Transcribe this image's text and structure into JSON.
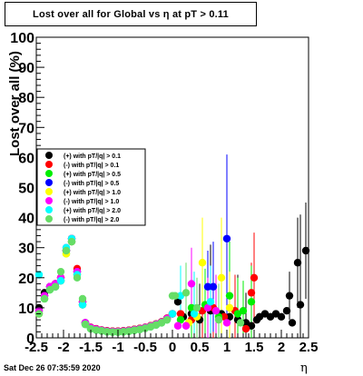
{
  "title": "Lost over all for Global vs   η at pT > 0.11",
  "timestamp": "Sat Dec 26 07:35:59 2020",
  "chart_data": {
    "type": "scatter",
    "title": "Lost over all for Global vs   η at pT > 0.11",
    "xlabel": "η",
    "ylabel": "Lost over all (%)",
    "xlim": [
      -2.5,
      2.5
    ],
    "ylim": [
      0,
      100
    ],
    "xticks": [
      "-2.5",
      "-2",
      "-1.5",
      "-1",
      "-0.5",
      "0",
      "0.5",
      "1",
      "1.5",
      "2",
      "2.5"
    ],
    "yticks": [
      "0",
      "10",
      "20",
      "30",
      "40",
      "50",
      "60",
      "70",
      "80",
      "90",
      "100"
    ],
    "legend_position": "left-middle",
    "series": [
      {
        "name": "(+) with pT/|q| > 0.1",
        "color": "#000000",
        "points": [
          [
            -2.45,
            10
          ],
          [
            -2.35,
            15
          ],
          [
            -2.25,
            17
          ],
          [
            -2.15,
            18
          ],
          [
            -2.05,
            20
          ],
          [
            -1.95,
            29
          ],
          [
            -1.85,
            33
          ],
          [
            -1.75,
            22
          ],
          [
            -1.65,
            12
          ],
          [
            -1.6,
            5
          ],
          [
            -1.5,
            3.5
          ],
          [
            -1.4,
            3
          ],
          [
            -1.3,
            2.6
          ],
          [
            -1.2,
            2.3
          ],
          [
            -1.1,
            2.2
          ],
          [
            -1.0,
            2.2
          ],
          [
            -0.9,
            2.3
          ],
          [
            -0.8,
            2.5
          ],
          [
            -0.7,
            2.8
          ],
          [
            -0.6,
            3.1
          ],
          [
            -0.5,
            3.5
          ],
          [
            -0.4,
            4
          ],
          [
            -0.3,
            4.6
          ],
          [
            -0.2,
            5.3
          ],
          [
            -0.1,
            6.5
          ],
          [
            0.0,
            8
          ],
          [
            0.1,
            12
          ],
          [
            0.2,
            7
          ],
          [
            0.35,
            8
          ],
          [
            0.5,
            6
          ],
          [
            0.7,
            9
          ],
          [
            0.9,
            8
          ],
          [
            1.05,
            7
          ],
          [
            1.2,
            6
          ],
          [
            1.35,
            5
          ],
          [
            1.45,
            4
          ],
          [
            1.55,
            6
          ],
          [
            1.6,
            7
          ],
          [
            1.7,
            8
          ],
          [
            1.8,
            7
          ],
          [
            1.9,
            8
          ],
          [
            2.0,
            7
          ],
          [
            2.1,
            9
          ],
          [
            2.15,
            14
          ],
          [
            2.2,
            5
          ],
          [
            2.3,
            25
          ],
          [
            2.35,
            11
          ],
          [
            2.45,
            29
          ]
        ],
        "errors": [
          [
            0.35,
            10
          ],
          [
            0.5,
            12
          ],
          [
            0.7,
            22
          ],
          [
            0.9,
            20
          ],
          [
            1.05,
            25
          ],
          [
            1.2,
            15
          ],
          [
            1.35,
            10
          ],
          [
            2.15,
            8
          ],
          [
            2.3,
            15
          ],
          [
            2.35,
            30
          ],
          [
            2.45,
            16
          ]
        ]
      },
      {
        "name": "(-) with pT/|q| > 0.1",
        "color": "#ff0000",
        "points": [
          [
            -2.45,
            9
          ],
          [
            -2.35,
            14
          ],
          [
            -2.25,
            17
          ],
          [
            -2.15,
            18
          ],
          [
            -2.05,
            20
          ],
          [
            -1.95,
            29
          ],
          [
            -1.85,
            33
          ],
          [
            -1.75,
            23
          ],
          [
            -1.65,
            12
          ],
          [
            -1.6,
            5
          ],
          [
            -1.5,
            3.5
          ],
          [
            -1.4,
            3
          ],
          [
            -1.3,
            2.6
          ],
          [
            -1.2,
            2.3
          ],
          [
            -1.1,
            2.2
          ],
          [
            -1.0,
            2.2
          ],
          [
            -0.9,
            2.3
          ],
          [
            -0.8,
            2.5
          ],
          [
            -0.7,
            2.8
          ],
          [
            -0.6,
            3.1
          ],
          [
            -0.5,
            3.5
          ],
          [
            -0.4,
            4
          ],
          [
            -0.3,
            4.6
          ],
          [
            -0.2,
            5.3
          ],
          [
            -0.1,
            6.5
          ],
          [
            0.0,
            8
          ],
          [
            0.15,
            8
          ],
          [
            0.35,
            6
          ],
          [
            0.55,
            9
          ],
          [
            0.75,
            10
          ],
          [
            0.95,
            7
          ],
          [
            1.15,
            9
          ],
          [
            1.35,
            3
          ],
          [
            1.45,
            15
          ],
          [
            1.5,
            20
          ]
        ],
        "errors": [
          [
            0.55,
            12
          ],
          [
            0.75,
            18
          ],
          [
            1.15,
            12
          ],
          [
            1.45,
            10
          ],
          [
            1.5,
            15
          ]
        ]
      },
      {
        "name": "(+) with pT/|q| > 0.5",
        "color": "#00ee00",
        "points": [
          [
            -2.45,
            8
          ],
          [
            -2.35,
            13
          ],
          [
            -2.25,
            16
          ],
          [
            -2.15,
            17
          ],
          [
            -2.05,
            19
          ],
          [
            -1.95,
            28
          ],
          [
            -1.85,
            32
          ],
          [
            -1.75,
            21
          ],
          [
            -1.65,
            11
          ],
          [
            -1.6,
            4.5
          ],
          [
            -1.5,
            3
          ],
          [
            -1.4,
            2.6
          ],
          [
            -1.3,
            2.3
          ],
          [
            -1.2,
            2
          ],
          [
            -1.1,
            1.9
          ],
          [
            -1.0,
            1.9
          ],
          [
            -0.9,
            2
          ],
          [
            -0.8,
            2.2
          ],
          [
            -0.7,
            2.5
          ],
          [
            -0.6,
            2.8
          ],
          [
            -0.5,
            3.2
          ],
          [
            -0.4,
            3.7
          ],
          [
            -0.3,
            4.3
          ],
          [
            -0.2,
            5
          ],
          [
            -0.1,
            6
          ],
          [
            0.0,
            8
          ],
          [
            0.15,
            6
          ],
          [
            0.35,
            10
          ],
          [
            0.6,
            11
          ],
          [
            0.85,
            7
          ],
          [
            1.05,
            14
          ],
          [
            1.2,
            8
          ],
          [
            1.3,
            9
          ],
          [
            1.45,
            12
          ]
        ],
        "errors": [
          [
            0.35,
            10
          ],
          [
            0.6,
            12
          ],
          [
            1.05,
            18
          ],
          [
            1.2,
            12
          ],
          [
            1.3,
            10
          ],
          [
            1.45,
            12
          ]
        ]
      },
      {
        "name": "(-) with pT/|q| > 0.5",
        "color": "#0000ff",
        "points": [
          [
            -2.45,
            9
          ],
          [
            -2.35,
            14
          ],
          [
            -2.25,
            17
          ],
          [
            -2.15,
            17
          ],
          [
            -2.05,
            19
          ],
          [
            -1.95,
            29
          ],
          [
            -1.85,
            32
          ],
          [
            -1.75,
            22
          ],
          [
            -1.65,
            11
          ],
          [
            -1.6,
            5
          ],
          [
            -1.5,
            3.2
          ],
          [
            -1.4,
            2.8
          ],
          [
            -1.3,
            2.4
          ],
          [
            -1.2,
            2.1
          ],
          [
            -1.1,
            2
          ],
          [
            -1.0,
            2
          ],
          [
            -0.9,
            2.1
          ],
          [
            -0.8,
            2.3
          ],
          [
            -0.7,
            2.6
          ],
          [
            -0.6,
            2.9
          ],
          [
            -0.5,
            3.3
          ],
          [
            -0.4,
            3.8
          ],
          [
            -0.3,
            4.4
          ],
          [
            -0.2,
            5.1
          ],
          [
            -0.1,
            6.2
          ],
          [
            0.0,
            8
          ],
          [
            0.65,
            17
          ],
          [
            0.75,
            17
          ],
          [
            1.0,
            33
          ]
        ],
        "errors": [
          [
            0.65,
            12
          ],
          [
            0.75,
            15
          ],
          [
            1.0,
            28
          ]
        ]
      },
      {
        "name": "(+) with pT/|q| > 1.0",
        "color": "#ffff00",
        "points": [
          [
            -2.45,
            8
          ],
          [
            -2.35,
            13
          ],
          [
            -2.25,
            16
          ],
          [
            -2.15,
            17
          ],
          [
            -2.05,
            19
          ],
          [
            -1.95,
            28
          ],
          [
            -1.85,
            32
          ],
          [
            -1.75,
            21
          ],
          [
            -1.65,
            11
          ],
          [
            -1.6,
            4.5
          ],
          [
            -1.5,
            3
          ],
          [
            -1.4,
            2.6
          ],
          [
            -1.3,
            2.3
          ],
          [
            -1.2,
            2
          ],
          [
            -1.1,
            1.9
          ],
          [
            -1.0,
            1.9
          ],
          [
            -0.9,
            2
          ],
          [
            -0.8,
            2.2
          ],
          [
            -0.7,
            2.5
          ],
          [
            -0.6,
            2.8
          ],
          [
            -0.5,
            3.2
          ],
          [
            -0.4,
            3.7
          ],
          [
            -0.3,
            4.3
          ],
          [
            -0.2,
            5
          ],
          [
            -0.1,
            6
          ],
          [
            0.0,
            8
          ],
          [
            0.3,
            5
          ],
          [
            0.45,
            7
          ],
          [
            0.55,
            25
          ],
          [
            0.9,
            20
          ],
          [
            1.05,
            10
          ]
        ],
        "errors": [
          [
            0.55,
            15
          ],
          [
            0.9,
            20
          ],
          [
            1.05,
            12
          ]
        ]
      },
      {
        "name": "(-) with pT/|q| > 1.0",
        "color": "#ff00ff",
        "points": [
          [
            -2.45,
            9
          ],
          [
            -2.35,
            14
          ],
          [
            -2.25,
            17
          ],
          [
            -2.15,
            18
          ],
          [
            -2.05,
            20
          ],
          [
            -1.95,
            30
          ],
          [
            -1.85,
            33
          ],
          [
            -1.75,
            22
          ],
          [
            -1.65,
            12
          ],
          [
            -1.6,
            5
          ],
          [
            -1.5,
            3.4
          ],
          [
            -1.4,
            2.9
          ],
          [
            -1.3,
            2.5
          ],
          [
            -1.2,
            2.2
          ],
          [
            -1.1,
            2.1
          ],
          [
            -1.0,
            2.1
          ],
          [
            -0.9,
            2.2
          ],
          [
            -0.8,
            2.4
          ],
          [
            -0.7,
            2.7
          ],
          [
            -0.6,
            3
          ],
          [
            -0.5,
            3.4
          ],
          [
            -0.4,
            3.9
          ],
          [
            -0.3,
            4.5
          ],
          [
            -0.2,
            5.2
          ],
          [
            -0.1,
            6.4
          ],
          [
            0.0,
            8
          ],
          [
            0.1,
            4
          ],
          [
            0.25,
            4
          ],
          [
            0.35,
            18
          ],
          [
            0.65,
            10
          ],
          [
            0.8,
            9
          ],
          [
            1.0,
            5
          ]
        ],
        "errors": [
          [
            0.35,
            12
          ],
          [
            0.65,
            10
          ],
          [
            0.8,
            12
          ]
        ]
      },
      {
        "name": "(+) with pT/|q| > 2.0",
        "color": "#00ffff",
        "points": [
          [
            -2.45,
            21
          ],
          [
            -2.35,
            13
          ],
          [
            -2.25,
            16
          ],
          [
            -2.15,
            17
          ],
          [
            -2.05,
            19
          ],
          [
            -1.95,
            30
          ],
          [
            -1.85,
            33
          ],
          [
            -1.75,
            21
          ],
          [
            -1.65,
            11
          ],
          [
            -1.6,
            4.5
          ],
          [
            -1.5,
            3
          ],
          [
            -1.4,
            2.6
          ],
          [
            -1.3,
            2.3
          ],
          [
            -1.2,
            2
          ],
          [
            -1.1,
            1.9
          ],
          [
            -1.0,
            1.9
          ],
          [
            -0.9,
            2
          ],
          [
            -0.8,
            2.2
          ],
          [
            -0.7,
            2.5
          ],
          [
            -0.6,
            2.8
          ],
          [
            -0.5,
            3.2
          ],
          [
            -0.4,
            3.7
          ],
          [
            -0.3,
            4.3
          ],
          [
            -0.2,
            5
          ],
          [
            -0.1,
            6
          ],
          [
            0.0,
            8
          ],
          [
            0.15,
            14
          ],
          [
            0.4,
            8
          ],
          [
            0.7,
            12
          ]
        ],
        "errors": [
          [
            0.15,
            10
          ],
          [
            0.4,
            14
          ],
          [
            0.7,
            12
          ]
        ]
      },
      {
        "name": "(-) with pT/|q| > 2.0",
        "color": "#66dd66",
        "points": [
          [
            -2.45,
            8
          ],
          [
            -2.35,
            13
          ],
          [
            -2.25,
            16
          ],
          [
            -2.15,
            17
          ],
          [
            -2.05,
            22
          ],
          [
            -1.95,
            29
          ],
          [
            -1.85,
            32
          ],
          [
            -1.75,
            20
          ],
          [
            -1.65,
            13
          ],
          [
            -1.6,
            4.5
          ],
          [
            -1.5,
            3
          ],
          [
            -1.4,
            2.6
          ],
          [
            -1.3,
            2.3
          ],
          [
            -1.2,
            2
          ],
          [
            -1.1,
            1.9
          ],
          [
            -1.0,
            1.9
          ],
          [
            -0.9,
            2
          ],
          [
            -0.8,
            2.2
          ],
          [
            -0.7,
            2.5
          ],
          [
            -0.6,
            2.8
          ],
          [
            -0.5,
            3.2
          ],
          [
            -0.4,
            3.7
          ],
          [
            -0.3,
            4.3
          ],
          [
            -0.2,
            5
          ],
          [
            -0.1,
            6
          ],
          [
            0.0,
            14
          ],
          [
            0.05,
            14
          ],
          [
            0.25,
            15
          ],
          [
            0.45,
            10
          ],
          [
            0.85,
            6
          ],
          [
            1.25,
            5
          ]
        ],
        "errors": [
          [
            0.25,
            10
          ],
          [
            0.45,
            10
          ],
          [
            0.85,
            12
          ]
        ]
      }
    ]
  }
}
